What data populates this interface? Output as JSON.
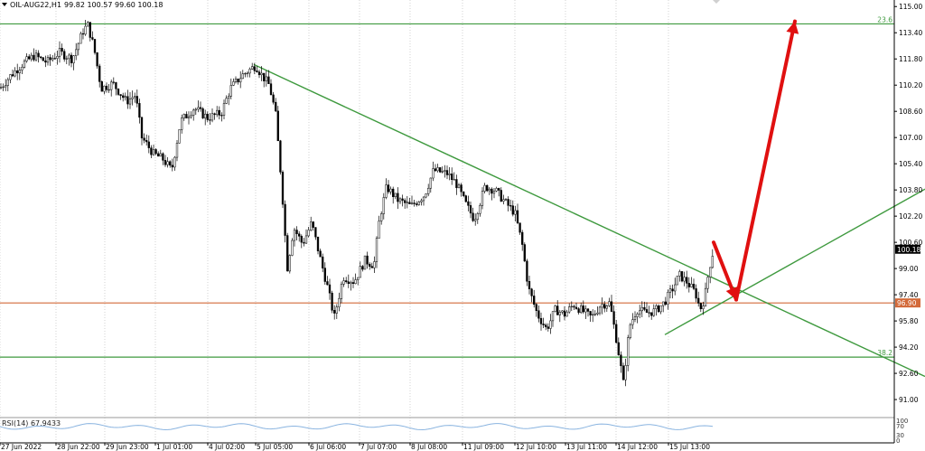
{
  "header": {
    "symbol": "OIL-AUG22,H1",
    "ohlc": "99.82 100.57 99.60 100.18",
    "menu_icon": "triangle-down-icon"
  },
  "chart_data": {
    "type": "candlestick",
    "symbol": "OIL-AUG22",
    "timeframe": "H1",
    "y_range": [
      89.9,
      115.4
    ],
    "y_ticks": [
      "115.00",
      "113.40",
      "111.80",
      "110.20",
      "108.60",
      "107.00",
      "105.40",
      "103.80",
      "102.20",
      "100.60",
      "99.00",
      "97.40",
      "95.80",
      "94.20",
      "92.60",
      "91.00"
    ],
    "x_ticks": [
      "27 Jun 2022",
      "28 Jun 22:00",
      "29 Jun 23:00",
      "1 Jul 01:00",
      "4 Jul 02:00",
      "5 Jul 05:00",
      "6 Jul 06:00",
      "7 Jul 07:00",
      "8 Jul 08:00",
      "11 Jul 09:00",
      "12 Jul 10:00",
      "13 Jul 11:00",
      "14 Jul 12:00",
      "15 Jul 13:00"
    ],
    "price_path": [
      [
        0,
        110.0
      ],
      [
        12,
        110.8
      ],
      [
        25,
        111.5
      ],
      [
        38,
        112.0
      ],
      [
        52,
        111.6
      ],
      [
        66,
        112.2
      ],
      [
        80,
        111.8
      ],
      [
        92,
        113.5
      ],
      [
        97,
        113.9
      ],
      [
        104,
        112.5
      ],
      [
        112,
        110.0
      ],
      [
        125,
        110.3
      ],
      [
        140,
        109.2
      ],
      [
        150,
        109.6
      ],
      [
        157,
        107.0
      ],
      [
        170,
        106.0
      ],
      [
        180,
        105.7
      ],
      [
        190,
        105.0
      ],
      [
        200,
        108.0
      ],
      [
        215,
        108.8
      ],
      [
        230,
        108.2
      ],
      [
        245,
        108.5
      ],
      [
        255,
        110.0
      ],
      [
        268,
        110.8
      ],
      [
        283,
        111.4
      ],
      [
        290,
        110.8
      ],
      [
        298,
        110.2
      ],
      [
        305,
        108.5
      ],
      [
        312,
        104.0
      ],
      [
        318,
        99.0
      ],
      [
        325,
        101.5
      ],
      [
        335,
        100.5
      ],
      [
        345,
        101.8
      ],
      [
        355,
        99.5
      ],
      [
        362,
        98.0
      ],
      [
        370,
        96.0
      ],
      [
        380,
        98.5
      ],
      [
        392,
        98.2
      ],
      [
        404,
        99.5
      ],
      [
        414,
        99.2
      ],
      [
        420,
        102.0
      ],
      [
        428,
        104.0
      ],
      [
        440,
        103.2
      ],
      [
        455,
        102.8
      ],
      [
        470,
        103.5
      ],
      [
        480,
        105.0
      ],
      [
        495,
        104.8
      ],
      [
        505,
        104.2
      ],
      [
        515,
        103.0
      ],
      [
        525,
        102.0
      ],
      [
        537,
        104.0
      ],
      [
        548,
        103.8
      ],
      [
        560,
        103.0
      ],
      [
        570,
        102.4
      ],
      [
        578,
        100.5
      ],
      [
        585,
        97.8
      ],
      [
        595,
        96.2
      ],
      [
        605,
        95.3
      ],
      [
        615,
        96.5
      ],
      [
        625,
        96.2
      ],
      [
        635,
        96.8
      ],
      [
        645,
        96.4
      ],
      [
        655,
        96.0
      ],
      [
        665,
        96.8
      ],
      [
        675,
        96.9
      ],
      [
        683,
        94.5
      ],
      [
        690,
        92.0
      ],
      [
        697,
        95.5
      ],
      [
        705,
        96.5
      ],
      [
        715,
        96.3
      ],
      [
        725,
        96.4
      ],
      [
        735,
        96.9
      ],
      [
        745,
        97.8
      ],
      [
        752,
        98.6
      ],
      [
        760,
        98.2
      ],
      [
        770,
        97.5
      ],
      [
        775,
        96.5
      ],
      [
        780,
        97.2
      ],
      [
        785,
        99.0
      ],
      [
        790,
        100.18
      ]
    ],
    "levels": [
      {
        "label": "23.6",
        "value": 113.94,
        "color": "#3f9a3f"
      },
      {
        "label": "38.2",
        "value": 93.59,
        "color": "#3f9a3f"
      },
      {
        "label": "96.90",
        "value": 96.9,
        "color": "#d36a3a"
      }
    ],
    "trendlines": [
      {
        "from": [
          281,
          111.46
        ],
        "to": [
          1024,
          92.41
        ],
        "color": "#3f9a3f"
      },
      {
        "from": [
          736,
          94.96
        ],
        "to": [
          1024,
          103.85
        ],
        "color": "#3f9a3f"
      }
    ],
    "arrows": [
      {
        "from": [
          790,
          100.6
        ],
        "to": [
          815,
          97.1
        ],
        "color": "#e01010"
      },
      {
        "from": [
          815,
          97.1
        ],
        "to": [
          880,
          114.1
        ],
        "color": "#e01010"
      }
    ],
    "current_price": {
      "label": "100.18",
      "value": 100.18
    },
    "rsi": {
      "label": "RSI(14) 67.9433",
      "levels": [
        "100",
        "70",
        "30",
        "0"
      ]
    }
  }
}
